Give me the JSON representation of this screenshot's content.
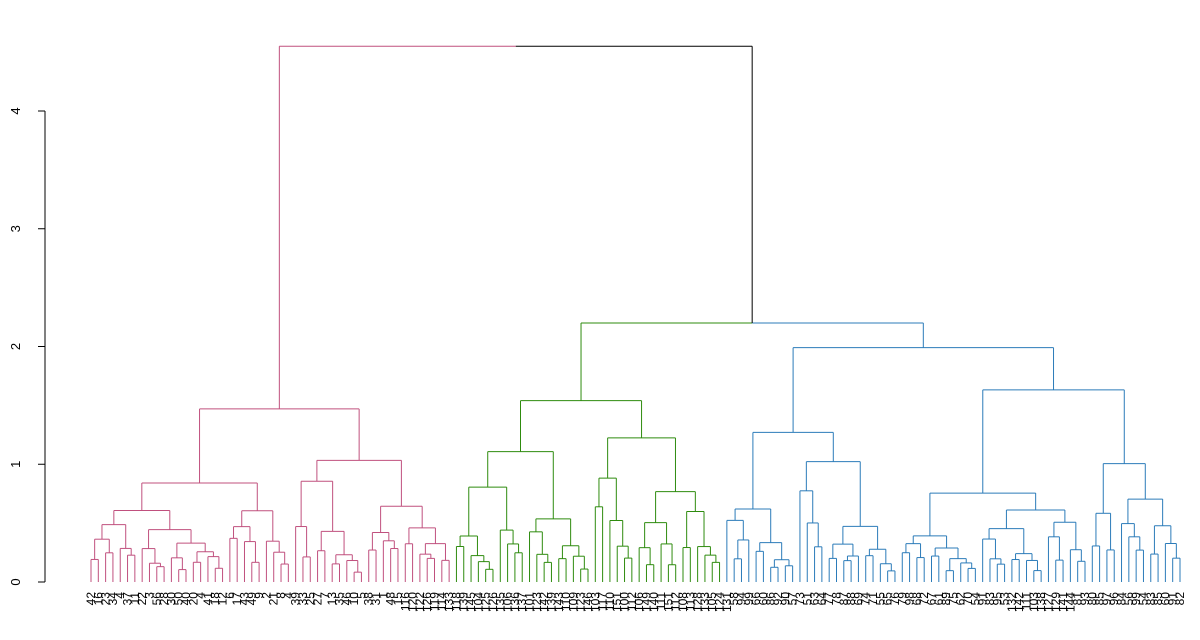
{
  "chart_data": {
    "type": "dendrogram",
    "y_axis": {
      "ylim": [
        0,
        4.55
      ],
      "ticks": [
        "0",
        "1",
        "2",
        "3",
        "4"
      ]
    },
    "colors": {
      "cluster_1": "#c0507e",
      "cluster_2": "#2e8b0e",
      "cluster_3": "#2b7bb9",
      "root": "#000000"
    },
    "clusters": [
      {
        "color_key": "cluster_1",
        "leaf_count": 50,
        "height": 1.47
      },
      {
        "color_key": "cluster_2",
        "leaf_count": 37,
        "height": 1.54
      },
      {
        "color_key": "cluster_3",
        "leaf_count": 63,
        "height": 1.99
      }
    ],
    "merges": [
      {
        "clusters": [
          2,
          3
        ],
        "height": 2.2
      },
      {
        "clusters": [
          1,
          "2+3"
        ],
        "height": 4.55
      }
    ],
    "leaf_labels": [
      "42",
      "16",
      "23",
      "34",
      "4",
      "37",
      "11",
      "22",
      "3",
      "56",
      "28",
      "30",
      "50",
      "40",
      "20",
      "4",
      "41",
      "18",
      "12",
      "6",
      "17",
      "43",
      "49",
      "9",
      "2",
      "21",
      "8",
      "4",
      "39",
      "33",
      "25",
      "27",
      "7",
      "13",
      "35",
      "46",
      "10",
      "5",
      "38",
      "31",
      "1",
      "48",
      "15",
      "116",
      "120",
      "122",
      "126",
      "119",
      "114",
      "133",
      "118",
      "139",
      "145",
      "104",
      "125",
      "126",
      "135",
      "106",
      "136",
      "137",
      "101",
      "123",
      "142",
      "139",
      "143",
      "110",
      "109",
      "123",
      "146",
      "103",
      "117",
      "110",
      "151",
      "100",
      "112",
      "106",
      "149",
      "140",
      "111",
      "151",
      "112",
      "108",
      "113",
      "128",
      "133",
      "105",
      "124",
      "131",
      "58",
      "94",
      "99",
      "66",
      "60",
      "86",
      "92",
      "90",
      "57",
      "73",
      "51",
      "63",
      "64",
      "77",
      "78",
      "87",
      "88",
      "69",
      "74",
      "71",
      "55",
      "65",
      "76",
      "79",
      "98",
      "68",
      "72",
      "67",
      "61",
      "89",
      "75",
      "62",
      "70",
      "54",
      "91",
      "83",
      "95",
      "53",
      "132",
      "142",
      "111",
      "103",
      "138",
      "127",
      "129",
      "141",
      "144",
      "81",
      "93",
      "80",
      "85",
      "97",
      "96",
      "84",
      "56",
      "99",
      "54",
      "83",
      "85",
      "60",
      "91",
      "82"
    ]
  }
}
